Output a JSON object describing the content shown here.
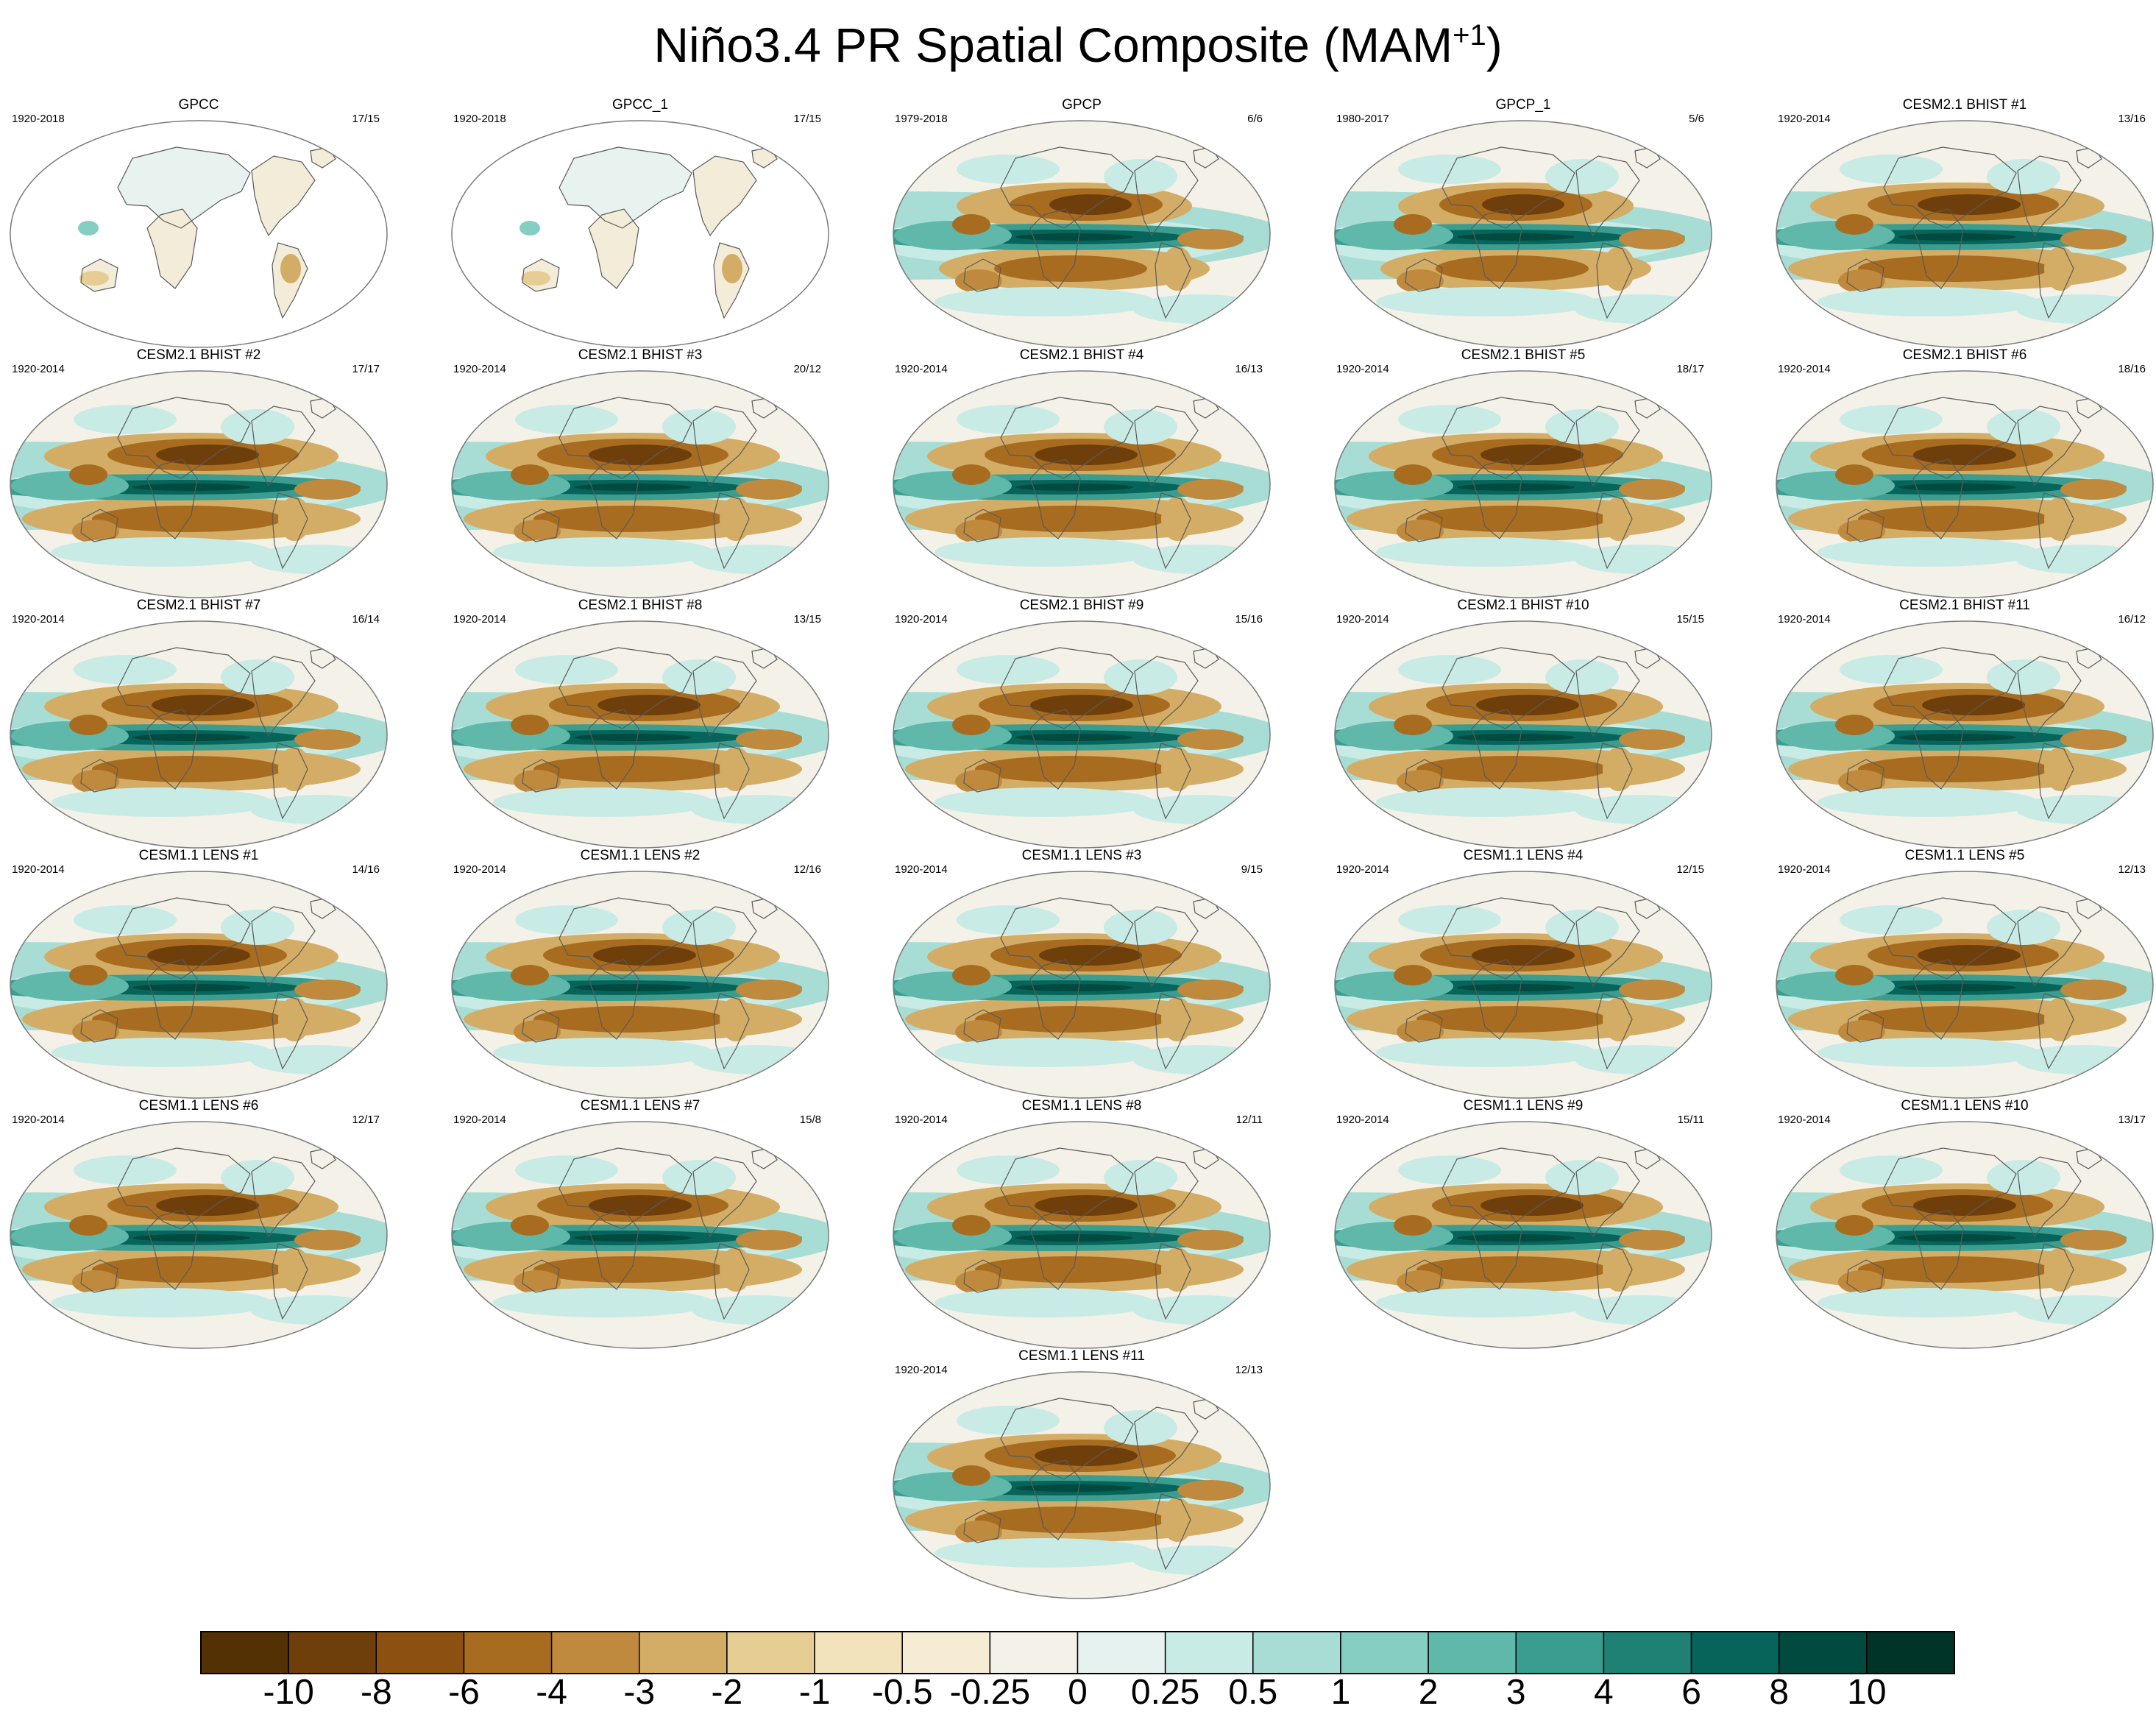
{
  "title_main": "Niño3.4 PR Spatial Composite (MAM",
  "title_sup": "+1",
  "title_end": ")",
  "chart_data": {
    "type": "map",
    "panels": [
      {
        "title": "GPCC",
        "years": "1920-2018",
        "count": "17/15",
        "pattern": "landonly"
      },
      {
        "title": "GPCC_1",
        "years": "1920-2018",
        "count": "17/15",
        "pattern": "landonly"
      },
      {
        "title": "GPCP",
        "years": "1979-2018",
        "count": "6/6",
        "pattern": "obs"
      },
      {
        "title": "GPCP_1",
        "years": "1980-2017",
        "count": "5/6",
        "pattern": "obs"
      },
      {
        "title": "CESM2.1 BHIST #1",
        "years": "1920-2014",
        "count": "13/16",
        "pattern": "model"
      },
      {
        "title": "CESM2.1 BHIST #2",
        "years": "1920-2014",
        "count": "17/17",
        "pattern": "model"
      },
      {
        "title": "CESM2.1 BHIST #3",
        "years": "1920-2014",
        "count": "20/12",
        "pattern": "model"
      },
      {
        "title": "CESM2.1 BHIST #4",
        "years": "1920-2014",
        "count": "16/13",
        "pattern": "model"
      },
      {
        "title": "CESM2.1 BHIST #5",
        "years": "1920-2014",
        "count": "18/17",
        "pattern": "model"
      },
      {
        "title": "CESM2.1 BHIST #6",
        "years": "1920-2014",
        "count": "18/16",
        "pattern": "model"
      },
      {
        "title": "CESM2.1 BHIST #7",
        "years": "1920-2014",
        "count": "16/14",
        "pattern": "model"
      },
      {
        "title": "CESM2.1 BHIST #8",
        "years": "1920-2014",
        "count": "13/15",
        "pattern": "model"
      },
      {
        "title": "CESM2.1 BHIST #9",
        "years": "1920-2014",
        "count": "15/16",
        "pattern": "model"
      },
      {
        "title": "CESM2.1 BHIST #10",
        "years": "1920-2014",
        "count": "15/15",
        "pattern": "model"
      },
      {
        "title": "CESM2.1 BHIST #11",
        "years": "1920-2014",
        "count": "16/12",
        "pattern": "model"
      },
      {
        "title": "CESM1.1 LENS #1",
        "years": "1920-2014",
        "count": "14/16",
        "pattern": "model"
      },
      {
        "title": "CESM1.1 LENS #2",
        "years": "1920-2014",
        "count": "12/16",
        "pattern": "model"
      },
      {
        "title": "CESM1.1 LENS #3",
        "years": "1920-2014",
        "count": "9/15",
        "pattern": "model"
      },
      {
        "title": "CESM1.1 LENS #4",
        "years": "1920-2014",
        "count": "12/15",
        "pattern": "model"
      },
      {
        "title": "CESM1.1 LENS #5",
        "years": "1920-2014",
        "count": "12/13",
        "pattern": "model"
      },
      {
        "title": "CESM1.1 LENS #6",
        "years": "1920-2014",
        "count": "12/17",
        "pattern": "model"
      },
      {
        "title": "CESM1.1 LENS #7",
        "years": "1920-2014",
        "count": "15/8",
        "pattern": "model"
      },
      {
        "title": "CESM1.1 LENS #8",
        "years": "1920-2014",
        "count": "12/11",
        "pattern": "model"
      },
      {
        "title": "CESM1.1 LENS #9",
        "years": "1920-2014",
        "count": "15/11",
        "pattern": "model"
      },
      {
        "title": "CESM1.1 LENS #10",
        "years": "1920-2014",
        "count": "13/17",
        "pattern": "model"
      },
      {
        "title": "CESM1.1 LENS #11",
        "years": "1920-2014",
        "count": "12/13",
        "pattern": "model"
      }
    ],
    "colorbar": {
      "colors": [
        "#543005",
        "#6e3f0b",
        "#8c5110",
        "#a86c20",
        "#c08a3e",
        "#d3ad65",
        "#e6cd93",
        "#f2e3bb",
        "#f6ecd4",
        "#f4f1e8",
        "#e6f2f0",
        "#c9ebe5",
        "#a8ddd5",
        "#86cec1",
        "#5fb8a9",
        "#3b9d8f",
        "#1f8173",
        "#06645a",
        "#014a40",
        "#003428"
      ],
      "labels": [
        "-10",
        "-8",
        "-6",
        "-4",
        "-3",
        "-2",
        "-1",
        "-0.5",
        "-0.25",
        "0",
        "0.25",
        "0.5",
        "1",
        "2",
        "3",
        "4",
        "6",
        "8",
        "10"
      ]
    }
  }
}
